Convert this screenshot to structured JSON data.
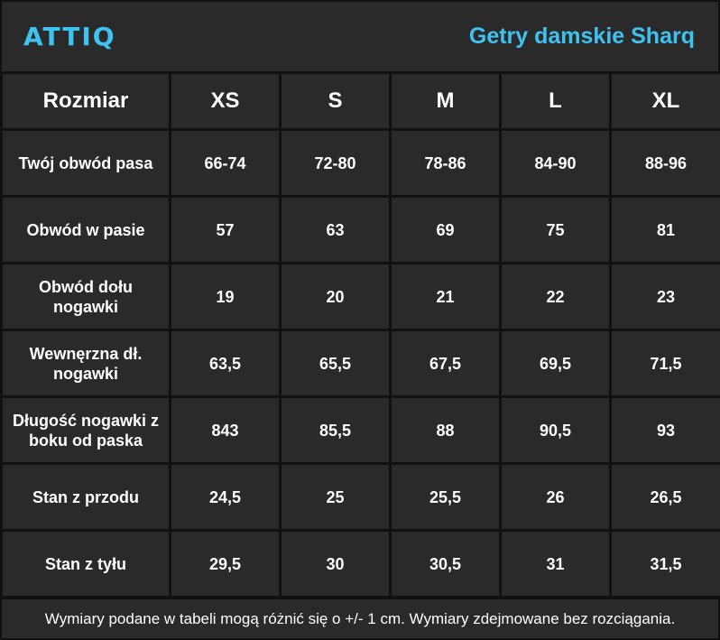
{
  "header": {
    "logo": "ATTIQ",
    "product_title": "Getry damskie Sharq"
  },
  "table": {
    "columns": [
      "Rozmiar",
      "XS",
      "S",
      "M",
      "L",
      "XL"
    ],
    "rows": [
      {
        "label": "Twój obwód pasa",
        "values": [
          "66-74",
          "72-80",
          "78-86",
          "84-90",
          "88-96"
        ]
      },
      {
        "label": "Obwód w pasie",
        "values": [
          "57",
          "63",
          "69",
          "75",
          "81"
        ]
      },
      {
        "label": "Obwód dołu nogawki",
        "values": [
          "19",
          "20",
          "21",
          "22",
          "23"
        ]
      },
      {
        "label": "Wewnęrzna dł. nogawki",
        "values": [
          "63,5",
          "65,5",
          "67,5",
          "69,5",
          "71,5"
        ]
      },
      {
        "label": "Długość nogawki z boku od paska",
        "values": [
          "843",
          "85,5",
          "88",
          "90,5",
          "93"
        ]
      },
      {
        "label": "Stan z przodu",
        "values": [
          "24,5",
          "25",
          "25,5",
          "26",
          "26,5"
        ]
      },
      {
        "label": "Stan z tyłu",
        "values": [
          "29,5",
          "30",
          "30,5",
          "31",
          "31,5"
        ]
      }
    ]
  },
  "footer": {
    "note": "Wymiary podane w tabeli mogą różnić się o +/- 1 cm. Wymiary zdejmowane bez rozciągania."
  },
  "colors": {
    "background": "#2a2a2a",
    "accent": "#3ec3f0",
    "grid": "#111111",
    "text": "#ffffff"
  }
}
